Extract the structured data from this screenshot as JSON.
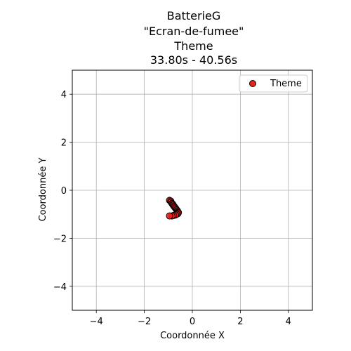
{
  "chart_data": {
    "type": "scatter",
    "title_lines": [
      "BatterieG",
      "\"Ecran-de-fumee\"",
      "Theme",
      "33.80s - 40.56s"
    ],
    "xlabel": "Coordonnée X",
    "ylabel": "Coordonnée Y",
    "xlim": [
      -5,
      5
    ],
    "ylim": [
      -5,
      5
    ],
    "xticks": [
      -4,
      -2,
      0,
      2,
      4
    ],
    "yticks": [
      -4,
      -2,
      0,
      2,
      4
    ],
    "grid": true,
    "legend_position": "top-right",
    "series": [
      {
        "name": "Theme",
        "color": "#e8231f",
        "edge_color": "#000000",
        "points": [
          [
            -0.95,
            -0.42
          ],
          [
            -0.9,
            -0.45
          ],
          [
            -0.88,
            -0.5
          ],
          [
            -0.85,
            -0.55
          ],
          [
            -0.82,
            -0.58
          ],
          [
            -0.8,
            -0.62
          ],
          [
            -0.77,
            -0.66
          ],
          [
            -0.74,
            -0.7
          ],
          [
            -0.71,
            -0.74
          ],
          [
            -0.68,
            -0.78
          ],
          [
            -0.65,
            -0.82
          ],
          [
            -0.62,
            -0.86
          ],
          [
            -0.6,
            -0.9
          ],
          [
            -0.58,
            -0.93
          ],
          [
            -0.6,
            -0.97
          ],
          [
            -0.65,
            -1.0
          ],
          [
            -0.7,
            -1.03
          ],
          [
            -0.78,
            -1.05
          ],
          [
            -0.85,
            -1.07
          ],
          [
            -0.95,
            -1.07
          ]
        ]
      }
    ]
  }
}
